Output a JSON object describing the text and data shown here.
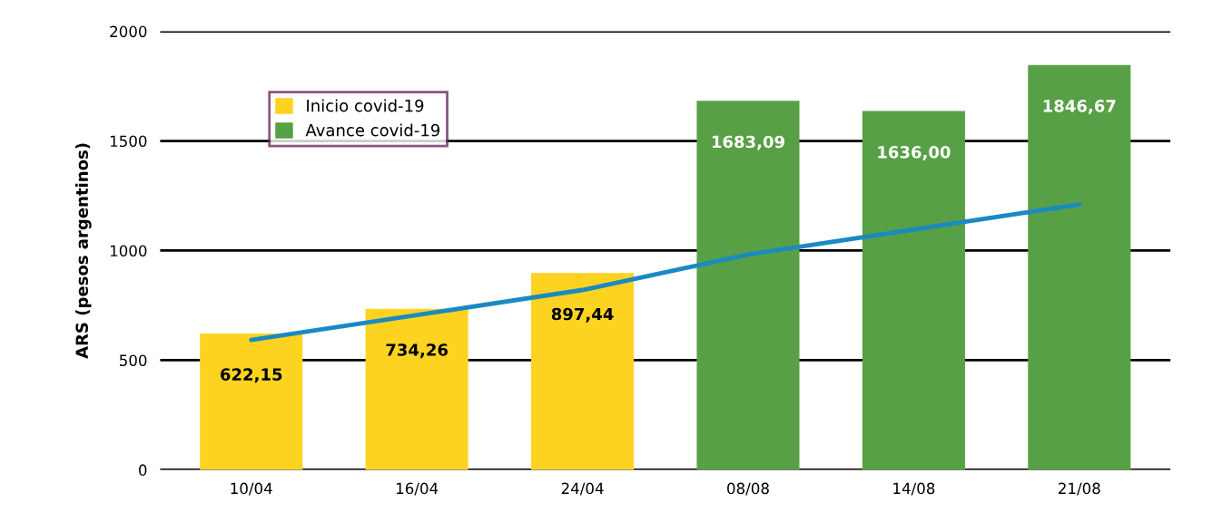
{
  "chart_data": {
    "type": "bar",
    "ylabel": "ARS (pesos argentinos)",
    "categories": [
      "10/04",
      "16/04",
      "24/04",
      "08/08",
      "14/08",
      "21/08"
    ],
    "series": [
      {
        "name": "Inicio covid-19",
        "color": "#fdd322",
        "values": [
          622.15,
          734.26,
          897.44,
          null,
          null,
          null
        ],
        "value_labels": [
          "622,15",
          "734,26",
          "897,44",
          null,
          null,
          null
        ]
      },
      {
        "name": "Avance covid-19",
        "color": "#58a045",
        "values": [
          null,
          null,
          null,
          1683.09,
          1636.0,
          1846.67
        ],
        "value_labels": [
          null,
          null,
          null,
          "1683,09",
          "1636,00",
          "1846,67"
        ]
      },
      {
        "type": "line",
        "color": "#1a8ac0",
        "values": [
          592,
          706,
          820,
          982,
          1096,
          1210
        ]
      }
    ],
    "ylim": [
      0,
      2000
    ],
    "yticks": [
      0,
      500,
      1000,
      1500,
      2000
    ],
    "grid": "y",
    "legend": "top left"
  }
}
